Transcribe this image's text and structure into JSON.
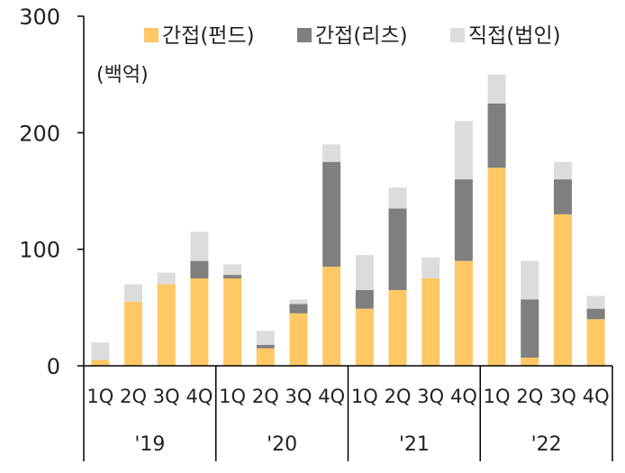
{
  "chart_data": {
    "type": "bar",
    "stacked": true,
    "unit_label": "(백억)",
    "ylim": [
      0,
      300
    ],
    "yticks": [
      0,
      100,
      200,
      300
    ],
    "grid": false,
    "legend_position": "top",
    "categories": [
      "1Q",
      "2Q",
      "3Q",
      "4Q",
      "1Q",
      "2Q",
      "3Q",
      "4Q",
      "1Q",
      "2Q",
      "3Q",
      "4Q",
      "1Q",
      "2Q",
      "3Q",
      "4Q"
    ],
    "groups": [
      {
        "label": "'19",
        "count": 4
      },
      {
        "label": "'20",
        "count": 4
      },
      {
        "label": "'21",
        "count": 4
      },
      {
        "label": "'22",
        "count": 4
      }
    ],
    "series": [
      {
        "name": "간접(펀드)",
        "color": "#FFC864",
        "values": [
          5,
          55,
          70,
          75,
          75,
          15,
          45,
          85,
          49,
          65,
          75,
          90,
          170,
          7,
          130,
          40
        ]
      },
      {
        "name": "간접(리츠)",
        "color": "#7F7F7F",
        "values": [
          0,
          0,
          0,
          15,
          3,
          3,
          8,
          90,
          16,
          70,
          0,
          70,
          55,
          50,
          30,
          9
        ]
      },
      {
        "name": "직접(법인)",
        "color": "#DCDCDC",
        "values": [
          15,
          15,
          10,
          25,
          9,
          12,
          4,
          15,
          30,
          18,
          18,
          50,
          25,
          33,
          15,
          11
        ]
      }
    ]
  }
}
